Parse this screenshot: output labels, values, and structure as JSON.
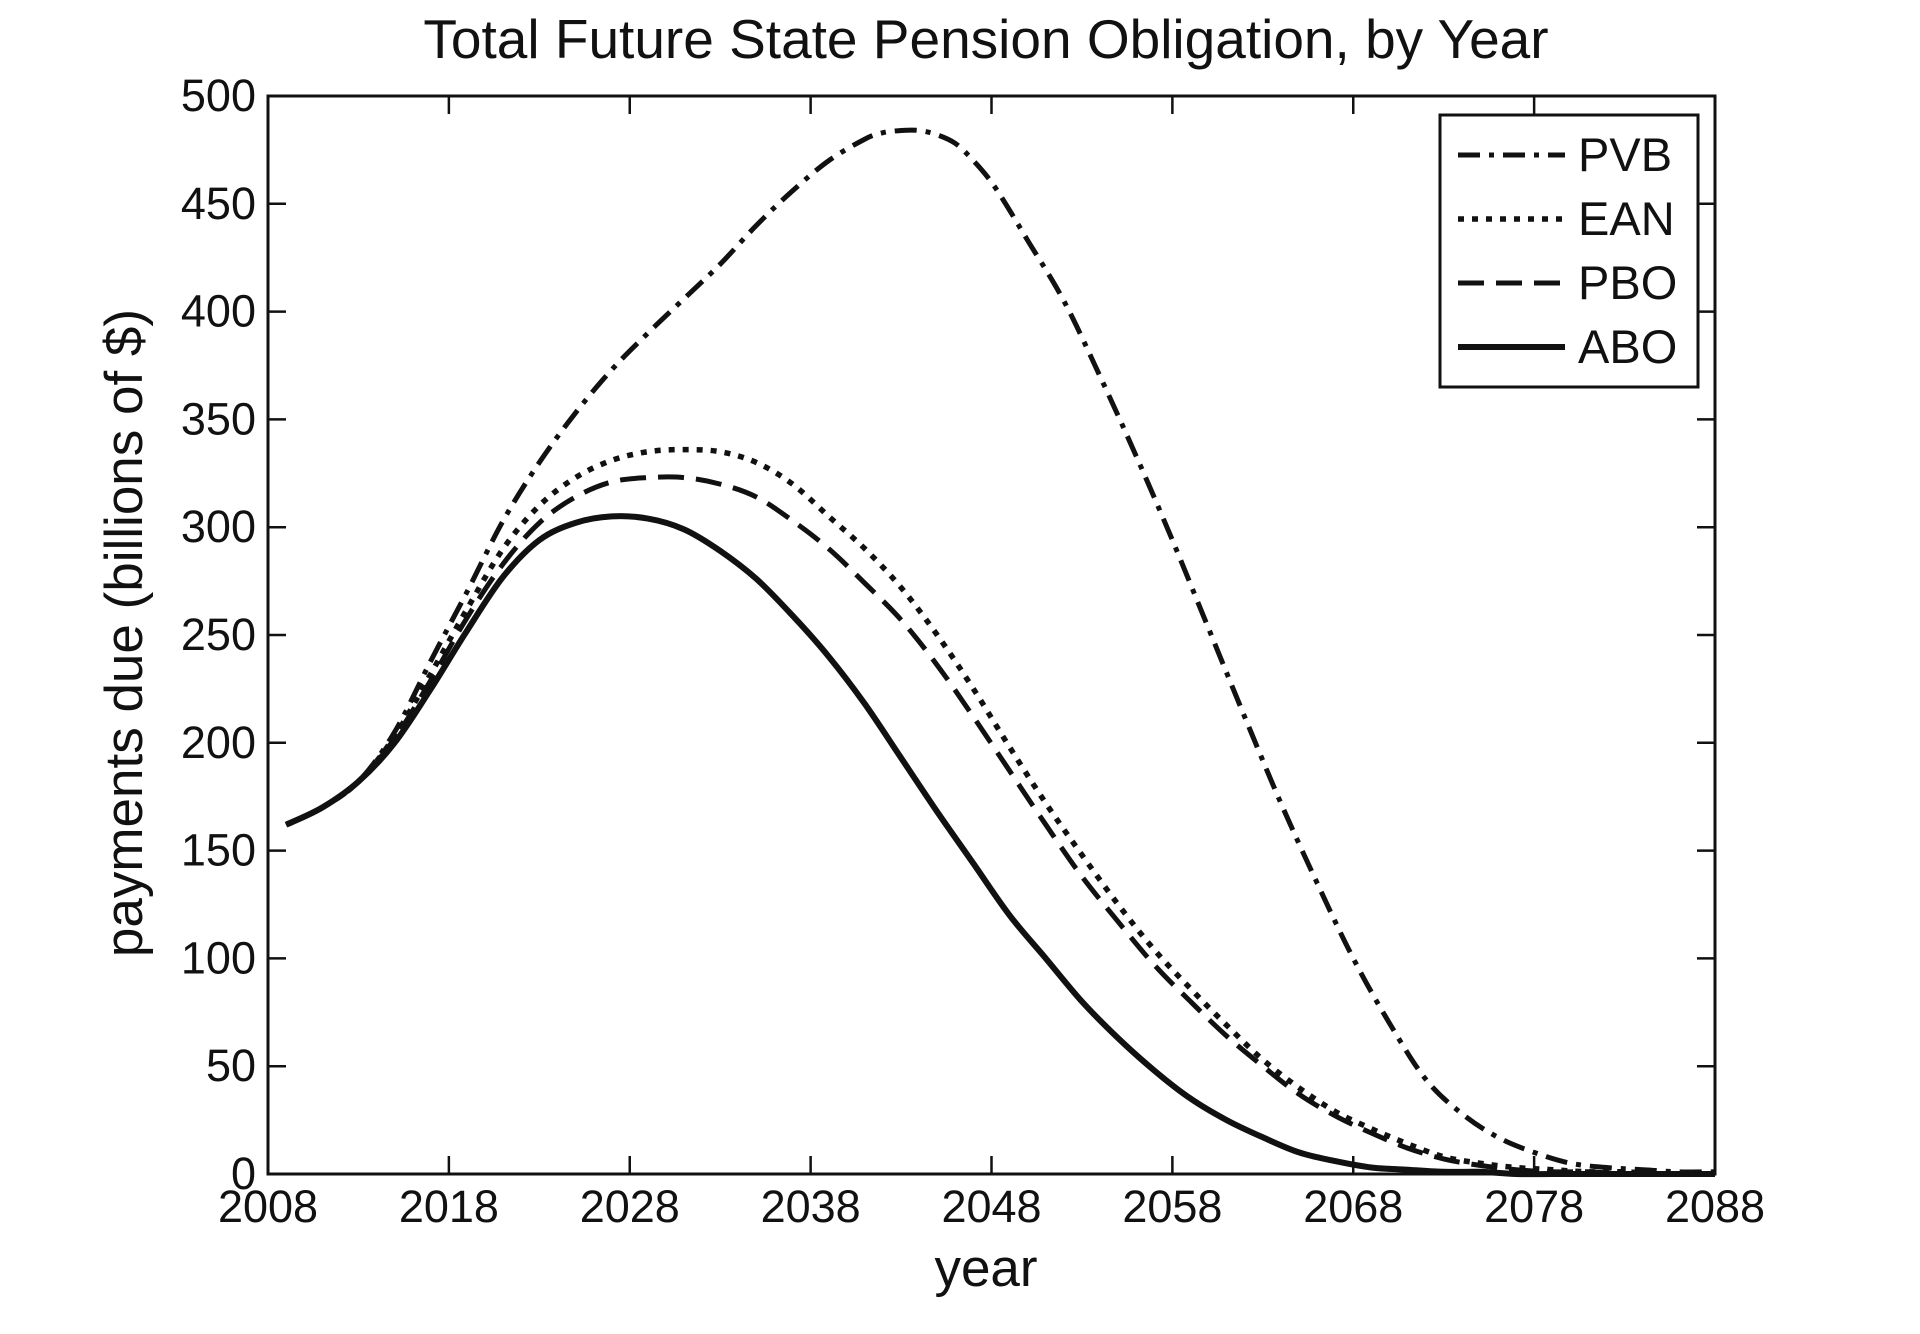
{
  "chart_data": {
    "type": "line",
    "title": "Total Future State Pension Obligation, by Year",
    "xlabel": "year",
    "ylabel": "payments due (billions of $)",
    "xlim": [
      2008,
      2088
    ],
    "ylim": [
      0,
      500
    ],
    "xticks": [
      2008,
      2018,
      2028,
      2038,
      2048,
      2058,
      2068,
      2078,
      2088
    ],
    "yticks": [
      0,
      50,
      100,
      150,
      200,
      250,
      300,
      350,
      400,
      450,
      500
    ],
    "xtick_labels": [
      "2008",
      "2018",
      "2028",
      "2038",
      "2048",
      "2058",
      "2068",
      "2078",
      "2088"
    ],
    "ytick_labels": [
      "0",
      "50",
      "100",
      "150",
      "200",
      "250",
      "300",
      "350",
      "400",
      "450",
      "500"
    ],
    "grid": false,
    "legend_position": "top-right",
    "series": [
      {
        "name": "PVB",
        "style": "dash-dot",
        "color": "#111111",
        "x": [
          2009,
          2011,
          2013,
          2015,
          2017,
          2019,
          2021,
          2023,
          2025,
          2027,
          2029,
          2031,
          2033,
          2035,
          2037,
          2039,
          2041,
          2042,
          2043,
          2044,
          2045,
          2046,
          2047,
          2048,
          2049,
          2050,
          2052,
          2054,
          2056,
          2058,
          2060,
          2062,
          2064,
          2066,
          2068,
          2070,
          2072,
          2074,
          2076,
          2078,
          2080,
          2082,
          2084,
          2086,
          2088
        ],
        "y": [
          162,
          170,
          182,
          205,
          238,
          270,
          303,
          330,
          353,
          373,
          390,
          406,
          422,
          440,
          456,
          470,
          480,
          483,
          484,
          484,
          482,
          478,
          470,
          460,
          447,
          433,
          405,
          370,
          333,
          294,
          253,
          212,
          172,
          135,
          100,
          70,
          44,
          28,
          17,
          10,
          5,
          3,
          2,
          1,
          1
        ]
      },
      {
        "name": "EAN",
        "style": "dotted",
        "color": "#111111",
        "x": [
          2009,
          2011,
          2013,
          2015,
          2017,
          2019,
          2021,
          2023,
          2025,
          2027,
          2029,
          2031,
          2033,
          2035,
          2037,
          2039,
          2041,
          2043,
          2045,
          2047,
          2049,
          2051,
          2053,
          2055,
          2057,
          2059,
          2061,
          2063,
          2065,
          2067,
          2069,
          2071,
          2073,
          2075,
          2077,
          2079,
          2081,
          2083,
          2085,
          2088
        ],
        "y": [
          162,
          170,
          182,
          203,
          232,
          262,
          290,
          310,
          323,
          331,
          335,
          336,
          335,
          330,
          320,
          305,
          290,
          272,
          250,
          225,
          198,
          172,
          148,
          125,
          104,
          86,
          69,
          53,
          40,
          29,
          21,
          14,
          8,
          5,
          3,
          2,
          1,
          1,
          0,
          0
        ]
      },
      {
        "name": "PBO",
        "style": "dashed",
        "color": "#111111",
        "x": [
          2009,
          2011,
          2013,
          2015,
          2017,
          2019,
          2021,
          2023,
          2025,
          2027,
          2029,
          2031,
          2033,
          2035,
          2037,
          2039,
          2041,
          2043,
          2045,
          2047,
          2049,
          2051,
          2053,
          2055,
          2057,
          2059,
          2061,
          2063,
          2065,
          2067,
          2069,
          2071,
          2073,
          2075,
          2077,
          2079,
          2081,
          2083,
          2085,
          2088
        ],
        "y": [
          162,
          170,
          182,
          202,
          229,
          258,
          283,
          302,
          314,
          321,
          323,
          323,
          320,
          314,
          303,
          290,
          274,
          257,
          236,
          212,
          187,
          162,
          138,
          117,
          97,
          80,
          64,
          50,
          37,
          27,
          19,
          12,
          7,
          4,
          2,
          1,
          1,
          0,
          0,
          0
        ]
      },
      {
        "name": "ABO",
        "style": "solid",
        "color": "#111111",
        "x": [
          2009,
          2011,
          2013,
          2015,
          2017,
          2019,
          2021,
          2023,
          2025,
          2027,
          2029,
          2031,
          2033,
          2035,
          2037,
          2039,
          2041,
          2043,
          2045,
          2047,
          2049,
          2051,
          2053,
          2055,
          2057,
          2059,
          2061,
          2063,
          2065,
          2067,
          2069,
          2071,
          2073,
          2075,
          2077,
          2079,
          2081,
          2083,
          2088
        ],
        "y": [
          162,
          170,
          182,
          200,
          225,
          252,
          277,
          294,
          302,
          305,
          304,
          299,
          289,
          276,
          259,
          240,
          218,
          193,
          168,
          144,
          120,
          100,
          80,
          63,
          48,
          35,
          25,
          17,
          10,
          6,
          3,
          2,
          1,
          1,
          0,
          0,
          0,
          0,
          0
        ]
      }
    ]
  }
}
